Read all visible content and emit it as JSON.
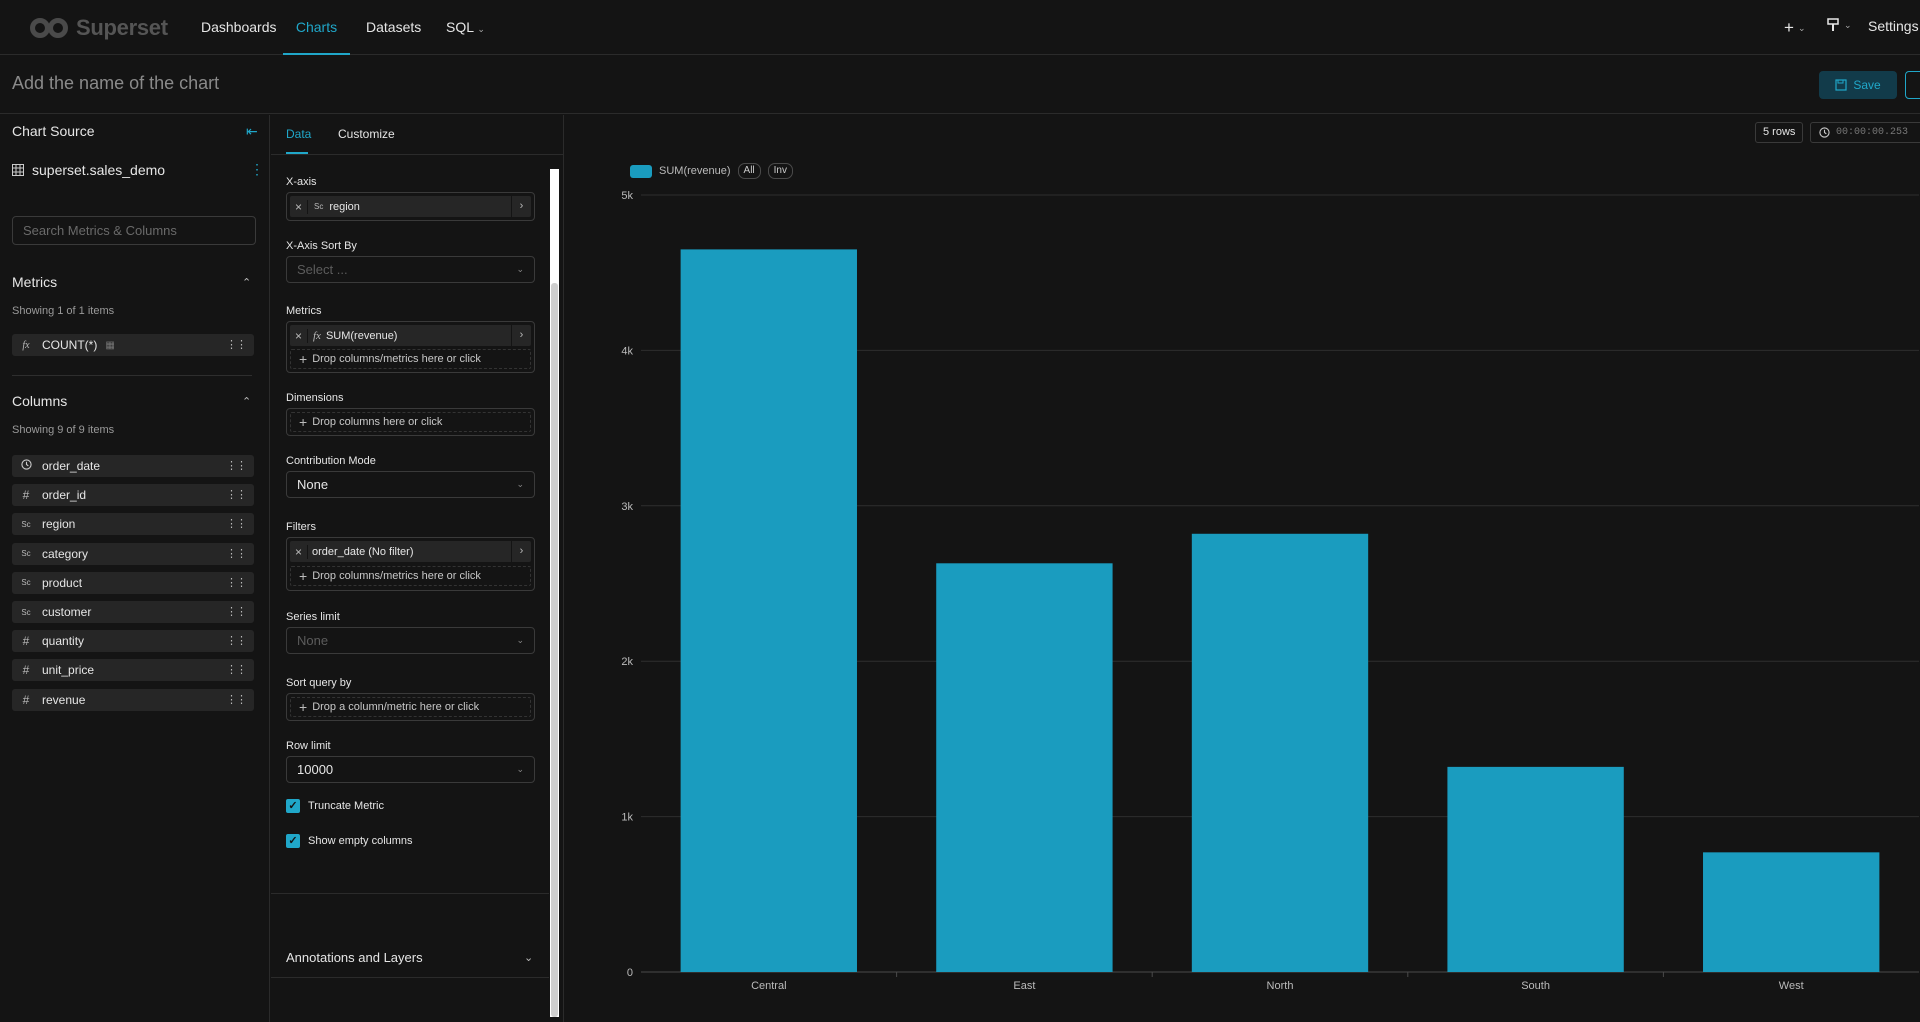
{
  "app": {
    "brand": "Superset",
    "nav": [
      {
        "label": "Dashboards"
      },
      {
        "label": "Charts"
      },
      {
        "label": "Datasets"
      },
      {
        "label": "SQL"
      }
    ],
    "settings_label": "Settings",
    "plus_icon": "plus-icon"
  },
  "header": {
    "chart_name_placeholder": "Add the name of the chart",
    "save_label": "Save"
  },
  "datasource": {
    "title": "Chart Source",
    "name": "superset.sales_demo",
    "search_placeholder": "Search Metrics & Columns",
    "metrics_title": "Metrics",
    "metrics_count": "Showing 1 of 1 items",
    "metrics": [
      {
        "icon": "fx",
        "label": "COUNT(*)"
      }
    ],
    "columns_title": "Columns",
    "columns_count": "Showing 9 of 9 items",
    "columns": [
      {
        "icon": "clock",
        "label": "order_date"
      },
      {
        "icon": "#",
        "label": "order_id"
      },
      {
        "icon": "Sc",
        "label": "region"
      },
      {
        "icon": "Sc",
        "label": "category"
      },
      {
        "icon": "Sc",
        "label": "product"
      },
      {
        "icon": "Sc",
        "label": "customer"
      },
      {
        "icon": "#",
        "label": "quantity"
      },
      {
        "icon": "#",
        "label": "unit_price"
      },
      {
        "icon": "#",
        "label": "revenue"
      }
    ]
  },
  "controls": {
    "tabs": [
      {
        "label": "Data"
      },
      {
        "label": "Customize"
      }
    ],
    "xaxis_label": "X-axis",
    "xaxis_value": "region",
    "xaxis_sort_label": "X-Axis Sort By",
    "xaxis_sort_placeholder": "Select ...",
    "metrics_label": "Metrics",
    "metrics_value": "SUM(revenue)",
    "drop_metrics": "Drop columns/metrics here or click",
    "dimensions_label": "Dimensions",
    "drop_columns": "Drop columns here or click",
    "contribution_label": "Contribution Mode",
    "contribution_value": "None",
    "filters_label": "Filters",
    "filters_value": "order_date (No filter)",
    "drop_filters": "Drop columns/metrics here or click",
    "series_limit_label": "Series limit",
    "series_limit_placeholder": "None",
    "sort_query_label": "Sort query by",
    "drop_sort": "Drop a column/metric here or click",
    "row_limit_label": "Row limit",
    "row_limit_value": "10000",
    "truncate_label": "Truncate Metric",
    "show_empty_label": "Show empty columns",
    "annotations_label": "Annotations and Layers"
  },
  "results": {
    "rows": "5 rows",
    "timer": "00:00:00.253"
  },
  "legend": {
    "series_name": "SUM(revenue)",
    "all_label": "All",
    "inv_label": "Inv"
  },
  "colors": {
    "accent": "#20a7c9",
    "bar": "#1a9cbf",
    "background": "#141414"
  },
  "chart_data": {
    "type": "bar",
    "categories": [
      "Central",
      "East",
      "North",
      "South",
      "West"
    ],
    "series": [
      {
        "name": "SUM(revenue)",
        "values": [
          4650,
          2630,
          2820,
          1320,
          770
        ]
      }
    ],
    "ylim": [
      0,
      5000
    ],
    "yticks": [
      0,
      1000,
      2000,
      3000,
      4000,
      5000
    ],
    "ytick_labels": [
      "0",
      "1k",
      "2k",
      "3k",
      "4k",
      "5k"
    ],
    "grid": true,
    "legend_position": "top-left"
  }
}
